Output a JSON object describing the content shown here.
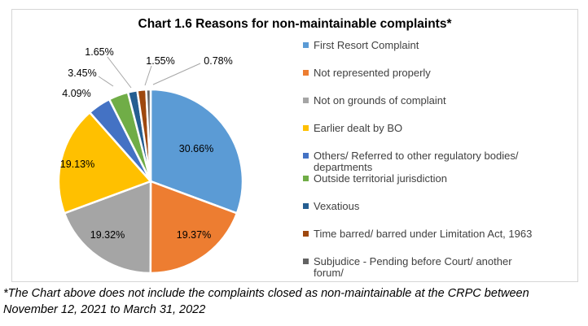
{
  "chart": {
    "title": "Chart 1.6 Reasons for non-maintainable complaints*",
    "footnote": "*The Chart above does not include the complaints closed as non-maintainable at the CRPC between\nNovember 12, 2021 to March 31, 2022"
  },
  "chart_data": {
    "type": "pie",
    "title": "Chart 1.6 Reasons for non-maintainable complaints*",
    "unit": "percent",
    "legend_position": "right",
    "start_angle_deg": 0,
    "direction": "clockwise",
    "slices": [
      {
        "label": "First Resort Complaint",
        "value": 30.66,
        "color": "#5B9BD5"
      },
      {
        "label": "Not represented properly",
        "value": 19.37,
        "color": "#ED7D31"
      },
      {
        "label": "Not on grounds of complaint",
        "value": 19.32,
        "color": "#A5A5A5"
      },
      {
        "label": "Earlier dealt by BO",
        "value": 19.13,
        "color": "#FFC000"
      },
      {
        "label": "Others/ Referred to other regulatory bodies/\ndepartments",
        "value": 4.09,
        "color": "#4472C4"
      },
      {
        "label": "Outside territorial jurisdiction",
        "value": 3.45,
        "color": "#70AD47"
      },
      {
        "label": "Vexatious",
        "value": 1.65,
        "color": "#255E91"
      },
      {
        "label": "Time barred/ barred under Limitation Act, 1963",
        "value": 1.55,
        "color": "#9E480E"
      },
      {
        "label": "Subjudice - Pending before Court/ another\nforum/",
        "value": 0.78,
        "color": "#636363"
      }
    ],
    "data_labels": [
      "30.66%",
      "19.37%",
      "19.32%",
      "19.13%",
      "4.09%",
      "3.45%",
      "1.65%",
      "1.55%",
      "0.78%"
    ]
  }
}
